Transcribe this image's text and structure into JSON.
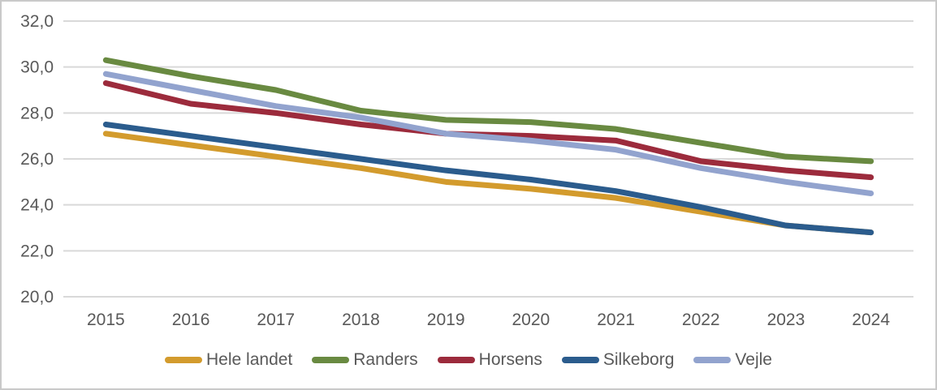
{
  "window": {
    "background_color": "#ffffff",
    "border_color": "#c9c9c9"
  },
  "chart_data": {
    "type": "line",
    "title": "",
    "xlabel": "",
    "ylabel": "",
    "categories": [
      "2015",
      "2016",
      "2017",
      "2018",
      "2019",
      "2020",
      "2021",
      "2022",
      "2023",
      "2024"
    ],
    "y_min": 20.0,
    "y_max": 32.0,
    "y_step": 2.0,
    "y_tick_labels": [
      "32,0",
      "30,0",
      "28,0",
      "26,0",
      "24,0",
      "22,0",
      "20,0"
    ],
    "grid": true,
    "gridline_color": "#d9d9d9",
    "axis_text_color": "#595959",
    "line_width": 7,
    "legend_position": "bottom",
    "series": [
      {
        "name": "Hele landet",
        "color": "#d39b2d",
        "values": [
          27.1,
          26.6,
          26.1,
          25.6,
          25.0,
          24.7,
          24.3,
          23.7,
          23.1,
          22.8
        ]
      },
      {
        "name": "Randers",
        "color": "#698a41",
        "values": [
          30.3,
          29.6,
          29.0,
          28.1,
          27.7,
          27.6,
          27.3,
          26.7,
          26.1,
          25.9
        ]
      },
      {
        "name": "Horsens",
        "color": "#9c2b3c",
        "values": [
          29.3,
          28.4,
          28.0,
          27.5,
          27.1,
          27.0,
          26.8,
          25.9,
          25.5,
          25.2
        ]
      },
      {
        "name": "Silkeborg",
        "color": "#2b5c8d",
        "values": [
          27.5,
          27.0,
          26.5,
          26.0,
          25.5,
          25.1,
          24.6,
          23.9,
          23.1,
          22.8
        ]
      },
      {
        "name": "Vejle",
        "color": "#92a3ce",
        "values": [
          29.7,
          29.0,
          28.3,
          27.8,
          27.1,
          26.8,
          26.4,
          25.6,
          25.0,
          24.5
        ]
      }
    ]
  },
  "legend": {
    "items": [
      "Hele landet",
      "Randers",
      "Horsens",
      "Silkeborg",
      "Vejle"
    ]
  }
}
